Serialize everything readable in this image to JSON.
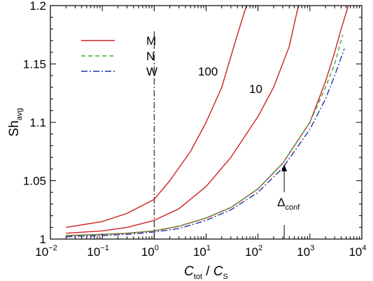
{
  "chart_data": {
    "type": "line",
    "x_scale": "log",
    "xlim": [
      0.01,
      10000
    ],
    "ylim": [
      1.0,
      1.2
    ],
    "xlabel": {
      "main1": "C",
      "sub1": "tot",
      "sep": " / ",
      "main2": "C",
      "sub2": "S"
    },
    "ylabel": {
      "main": "Sh",
      "sub": "avg"
    },
    "x_ticks": [
      {
        "value": 0.01,
        "base": "10",
        "exp": "−2"
      },
      {
        "value": 0.1,
        "base": "10",
        "exp": "−1"
      },
      {
        "value": 1,
        "base": "10",
        "exp": "0"
      },
      {
        "value": 10,
        "base": "10",
        "exp": "1"
      },
      {
        "value": 100,
        "base": "10",
        "exp": "2"
      },
      {
        "value": 1000,
        "base": "10",
        "exp": "3"
      },
      {
        "value": 10000,
        "base": "10",
        "exp": "4"
      }
    ],
    "y_ticks": [
      {
        "value": 1.0,
        "label": "1"
      },
      {
        "value": 1.05,
        "label": "1.05"
      },
      {
        "value": 1.1,
        "label": "1.1"
      },
      {
        "value": 1.15,
        "label": "1.15"
      },
      {
        "value": 1.2,
        "label": "1.2"
      }
    ],
    "legend": {
      "placement": "top-left",
      "entries": [
        {
          "name": "M",
          "color": "#cc2222",
          "dash": "solid"
        },
        {
          "name": "N",
          "color": "#33aa33",
          "dash": "dashed"
        },
        {
          "name": "W",
          "color": "#2233aa",
          "dash": "dashdot"
        }
      ]
    },
    "series": [
      {
        "name": "M",
        "curve_label": "100",
        "color": "#cc2222",
        "dash": "solid",
        "points": [
          [
            0.02,
            1.01
          ],
          [
            0.1,
            1.015
          ],
          [
            0.3,
            1.022
          ],
          [
            1,
            1.034
          ],
          [
            2,
            1.05
          ],
          [
            5,
            1.075
          ],
          [
            10,
            1.1
          ],
          [
            20,
            1.13
          ],
          [
            40,
            1.175
          ],
          [
            60,
            1.2
          ]
        ]
      },
      {
        "name": "M",
        "curve_label": "10",
        "color": "#cc2222",
        "dash": "solid",
        "points": [
          [
            0.02,
            1.005
          ],
          [
            0.1,
            1.007
          ],
          [
            0.3,
            1.01
          ],
          [
            1,
            1.016
          ],
          [
            3,
            1.026
          ],
          [
            10,
            1.045
          ],
          [
            30,
            1.07
          ],
          [
            100,
            1.105
          ],
          [
            200,
            1.13
          ],
          [
            400,
            1.165
          ],
          [
            600,
            1.2
          ]
        ]
      },
      {
        "name": "M",
        "curve_label": "",
        "color": "#cc2222",
        "dash": "solid",
        "points": [
          [
            0.02,
            1.003
          ],
          [
            0.1,
            1.004
          ],
          [
            0.3,
            1.005
          ],
          [
            1,
            1.007
          ],
          [
            3,
            1.011
          ],
          [
            10,
            1.018
          ],
          [
            30,
            1.027
          ],
          [
            100,
            1.043
          ],
          [
            300,
            1.065
          ],
          [
            1000,
            1.1
          ],
          [
            2000,
            1.135
          ],
          [
            3000,
            1.16
          ],
          [
            4000,
            1.18
          ],
          [
            5500,
            1.2
          ]
        ]
      },
      {
        "name": "N",
        "curve_label": "",
        "color": "#33aa33",
        "dash": "dashed",
        "points": [
          [
            0.02,
            1.003
          ],
          [
            0.1,
            1.004
          ],
          [
            0.3,
            1.005
          ],
          [
            1,
            1.007
          ],
          [
            3,
            1.011
          ],
          [
            10,
            1.018
          ],
          [
            30,
            1.027
          ],
          [
            100,
            1.043
          ],
          [
            300,
            1.065
          ],
          [
            1000,
            1.1
          ],
          [
            2000,
            1.13
          ],
          [
            3000,
            1.15
          ],
          [
            4300,
            1.175
          ]
        ]
      },
      {
        "name": "W",
        "curve_label": "",
        "color": "#2233aa",
        "dash": "dashdot",
        "points": [
          [
            0.02,
            1.002
          ],
          [
            0.1,
            1.003
          ],
          [
            0.3,
            1.004
          ],
          [
            1,
            1.006
          ],
          [
            3,
            1.009
          ],
          [
            10,
            1.016
          ],
          [
            30,
            1.025
          ],
          [
            100,
            1.04
          ],
          [
            300,
            1.061
          ],
          [
            1000,
            1.094
          ],
          [
            2000,
            1.12
          ],
          [
            3000,
            1.14
          ],
          [
            4600,
            1.163
          ]
        ]
      }
    ],
    "reference_lines": [
      {
        "orientation": "horizontal",
        "value": 1.0,
        "style": "dashdot"
      },
      {
        "orientation": "vertical",
        "value": 1,
        "from": 1.0,
        "to": 1.178,
        "style": "dashdot"
      }
    ],
    "annotation": {
      "symbol": "Δ",
      "sub": "conf",
      "x": 320,
      "y_low": 1.0,
      "y_high": 1.064
    }
  }
}
